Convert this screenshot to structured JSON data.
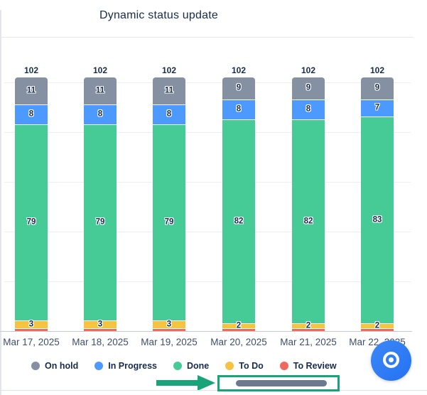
{
  "chart_data": {
    "type": "bar",
    "stacked": true,
    "title": "Dynamic status update",
    "categories": [
      "Mar 17, 2025",
      "Mar 18, 2025",
      "Mar 19, 2025",
      "Mar 20, 2025",
      "Mar 21, 2025",
      "Mar 22, 2025"
    ],
    "series": [
      {
        "name": "On hold",
        "color": "#8590A2",
        "values": [
          11,
          11,
          11,
          9,
          9,
          9
        ]
      },
      {
        "name": "In Progress",
        "color": "#4C9AFF",
        "values": [
          8,
          8,
          8,
          8,
          8,
          7
        ]
      },
      {
        "name": "Done",
        "color": "#47CB96",
        "values": [
          79,
          79,
          79,
          82,
          82,
          83
        ]
      },
      {
        "name": "To Do",
        "color": "#F5C342",
        "values": [
          3,
          3,
          3,
          2,
          2,
          2
        ]
      },
      {
        "name": "To Review",
        "color": "#F2685C",
        "values": [
          1,
          1,
          1,
          1,
          1,
          1
        ]
      }
    ],
    "totals": [
      102,
      102,
      102,
      102,
      102,
      102
    ],
    "ylim": [
      0,
      110
    ],
    "gridline_values": [
      20,
      40,
      60,
      80,
      100
    ],
    "grid": true,
    "legend_position": "bottom",
    "value_label_color": "#172B4D"
  },
  "annotation": {
    "accent_color": "#18A478",
    "scrollbar_thumb_color": "#6C798F",
    "target": "horizontal-scrollbar-thumb"
  },
  "fab": {
    "background": "#2D7DF6",
    "icon": "target-speech-bubble-icon"
  }
}
